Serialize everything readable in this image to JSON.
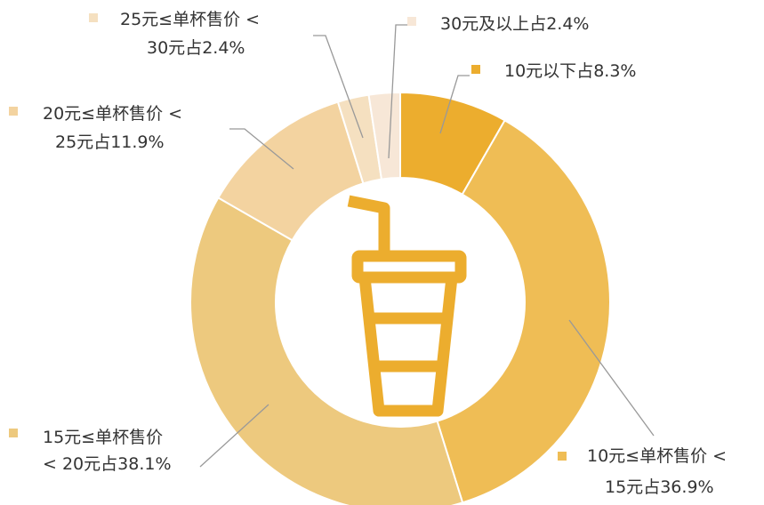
{
  "chart_data": {
    "type": "donut",
    "categories": [
      [
        "10元以下"
      ],
      [
        "10元≤单杯售价 <",
        "15元"
      ],
      [
        "15元≤单杯售价",
        "< 20元"
      ],
      [
        "20元≤单杯售价 <",
        "25元"
      ],
      [
        "25元≤单杯售价 <",
        "30元"
      ],
      [
        "30元及以上"
      ]
    ],
    "values": [
      8.3,
      36.9,
      38.1,
      11.9,
      2.4,
      2.4
    ],
    "value_labels": [
      "占8.3%",
      "占36.9%",
      "占38.1%",
      "占11.9%",
      "占2.4%",
      "占2.4%"
    ],
    "colors": [
      "#ecad2e",
      "#efbd55",
      "#edc97e",
      "#f3d3a0",
      "#f5e0c0",
      "#f7e7d7"
    ]
  }
}
